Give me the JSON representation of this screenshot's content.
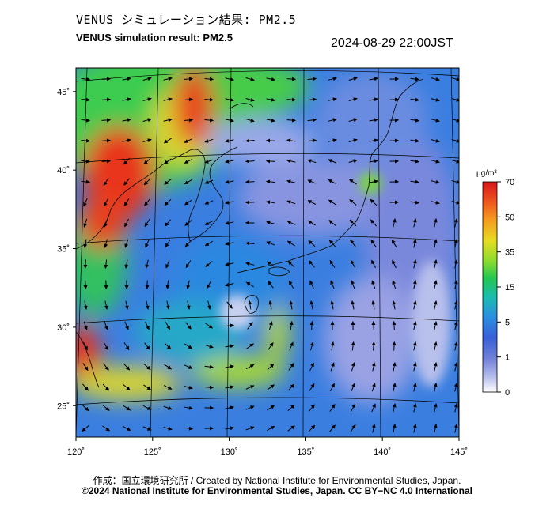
{
  "header": {
    "title_jp": "VENUS シミュレーション結果: PM2.5",
    "title_en": "VENUS simulation result: PM2.5",
    "timestamp": "2024-08-29 22:00JST"
  },
  "map": {
    "lat_labels": [
      "45˚",
      "40˚",
      "35˚",
      "30˚",
      "25˚"
    ],
    "lat_values": [
      45,
      40,
      35,
      30,
      25
    ],
    "lon_labels": [
      "120˚",
      "125˚",
      "130˚",
      "135˚",
      "140˚",
      "145˚"
    ],
    "lon_values": [
      120,
      125,
      130,
      135,
      140,
      145
    ],
    "lon_range": [
      120,
      145
    ],
    "lat_range": [
      23,
      46.5
    ],
    "colorbar": {
      "unit": "µg/m³",
      "ticks": [
        "70",
        "50",
        "35",
        "15",
        "5",
        "1",
        "0"
      ],
      "colors": [
        "#e0201a",
        "#f06a1e",
        "#f5b020",
        "#e8e020",
        "#90e030",
        "#20c850",
        "#20b8a8",
        "#2a90e0",
        "#3860d8",
        "#6a78d8",
        "#a8b0e8",
        "#ffffff"
      ]
    }
  },
  "footer": {
    "credit_line1": "作成：国立環境研究所 / Created by National Institute for Environmental Studies, Japan.",
    "credit_line2": "©2024 National Institute for Environmental Studies, Japan. CC BY−NC 4.0 International"
  }
}
